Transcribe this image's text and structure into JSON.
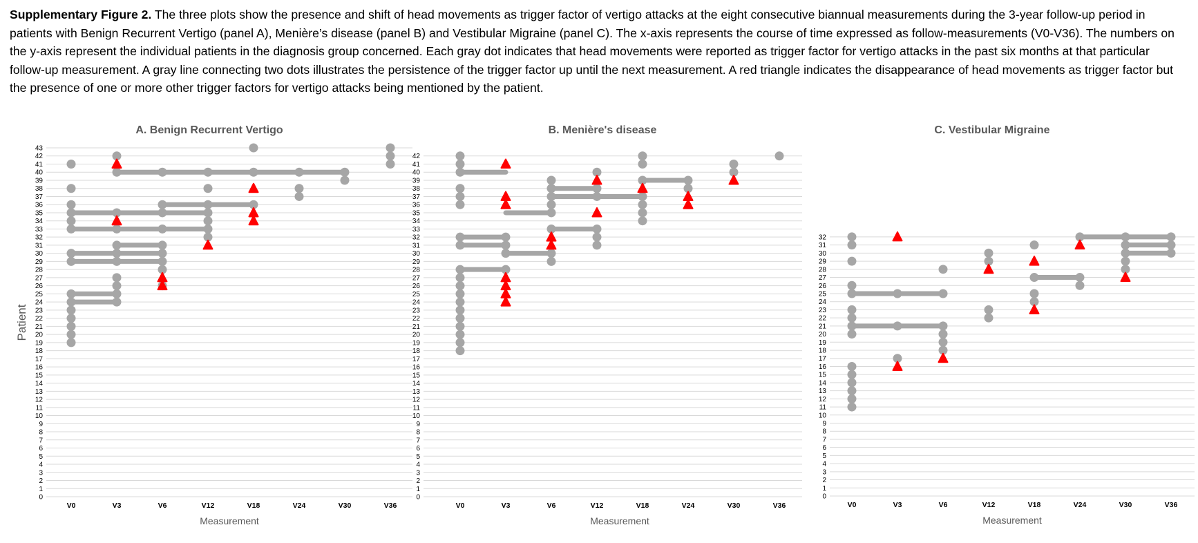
{
  "caption": {
    "label": "Supplementary Figure 2.",
    "text": " The three plots show the presence and shift of head movements as trigger factor of vertigo attacks at the eight consecutive biannual measurements during the 3-year follow-up period in patients with Benign Recurrent Vertigo (panel A), Menière’s disease (panel B) and Vestibular Migraine (panel C). The x-axis represents the course of time expressed as follow-measurements (V0-V36). The numbers on the y-axis represent the individual patients in the diagnosis group concerned. Each gray dot indicates that head movements were reported as trigger factor for vertigo attacks in the past six months at that particular follow-up measurement. A gray line connecting two dots illustrates the persistence of the trigger factor up until the next measurement. A red triangle indicates the disappearance of head movements as trigger factor but the presence of one or more other trigger factors for vertigo attacks being mentioned by the patient."
  },
  "colors": {
    "dot": "#a6a6a6",
    "line": "#a6a6a6",
    "triangle": "#ff0000",
    "grid": "#d9d9d9",
    "title": "#595959"
  },
  "chart_data": [
    {
      "type": "scatter",
      "title": "A. Benign Recurrent Vertigo",
      "xlabel": "Measurement",
      "ylabel": "Patient",
      "categories": [
        "V0",
        "V3",
        "V6",
        "V12",
        "V18",
        "V24",
        "V30",
        "V36"
      ],
      "ylim": [
        0,
        43
      ],
      "dots": [
        {
          "x": "V0",
          "y": [
            19,
            20,
            21,
            22,
            23,
            24,
            25,
            29,
            30,
            33,
            34,
            35,
            36,
            38,
            41
          ]
        },
        {
          "x": "V3",
          "y": [
            24,
            25,
            26,
            27,
            29,
            30,
            31,
            33,
            35,
            40,
            42
          ]
        },
        {
          "x": "V6",
          "y": [
            26,
            28,
            29,
            30,
            31,
            33,
            35,
            36,
            40
          ]
        },
        {
          "x": "V12",
          "y": [
            32,
            33,
            34,
            35,
            36,
            38,
            40
          ]
        },
        {
          "x": "V18",
          "y": [
            36,
            40,
            43
          ]
        },
        {
          "x": "V24",
          "y": [
            37,
            38,
            40
          ]
        },
        {
          "x": "V30",
          "y": [
            39,
            40
          ]
        },
        {
          "x": "V36",
          "y": [
            41,
            42,
            43
          ]
        }
      ],
      "lines": [
        {
          "y": 24,
          "from": "V0",
          "to": "V3"
        },
        {
          "y": 25,
          "from": "V0",
          "to": "V3"
        },
        {
          "y": 29,
          "from": "V0",
          "to": "V6"
        },
        {
          "y": 30,
          "from": "V0",
          "to": "V6"
        },
        {
          "y": 31,
          "from": "V3",
          "to": "V6"
        },
        {
          "y": 33,
          "from": "V0",
          "to": "V12"
        },
        {
          "y": 35,
          "from": "V0",
          "to": "V12"
        },
        {
          "y": 36,
          "from": "V6",
          "to": "V18"
        },
        {
          "y": 40,
          "from": "V3",
          "to": "V30"
        }
      ],
      "triangles": [
        {
          "x": "V3",
          "y": [
            34,
            41
          ]
        },
        {
          "x": "V6",
          "y": [
            26,
            27
          ]
        },
        {
          "x": "V12",
          "y": [
            31
          ]
        },
        {
          "x": "V18",
          "y": [
            34,
            35,
            38
          ]
        }
      ]
    },
    {
      "type": "scatter",
      "title": "B. Menière's disease",
      "xlabel": "Measurement",
      "ylabel": "",
      "categories": [
        "V0",
        "V3",
        "V6",
        "V12",
        "V18",
        "V24",
        "V30",
        "V36"
      ],
      "ylim": [
        0,
        42
      ],
      "dots": [
        {
          "x": "V0",
          "y": [
            18,
            19,
            20,
            21,
            22,
            23,
            24,
            25,
            26,
            27,
            28,
            31,
            32,
            36,
            37,
            38,
            40,
            41,
            42
          ]
        },
        {
          "x": "V3",
          "y": [
            28,
            30,
            31,
            32
          ]
        },
        {
          "x": "V6",
          "y": [
            29,
            30,
            33,
            35,
            36,
            37,
            38,
            39
          ]
        },
        {
          "x": "V12",
          "y": [
            31,
            32,
            33,
            37,
            38,
            40
          ]
        },
        {
          "x": "V18",
          "y": [
            34,
            35,
            36,
            37,
            39,
            41,
            42
          ]
        },
        {
          "x": "V24",
          "y": [
            38,
            39
          ]
        },
        {
          "x": "V30",
          "y": [
            40,
            41
          ]
        },
        {
          "x": "V36",
          "y": [
            42
          ]
        }
      ],
      "lines": [
        {
          "y": 28,
          "from": "V0",
          "to": "V3"
        },
        {
          "y": 30,
          "from": "V3",
          "to": "V6"
        },
        {
          "y": 31,
          "from": "V0",
          "to": "V3"
        },
        {
          "y": 32,
          "from": "V0",
          "to": "V3"
        },
        {
          "y": 33,
          "from": "V6",
          "to": "V12"
        },
        {
          "y": 35,
          "from": "V3",
          "to": "V6"
        },
        {
          "y": 37,
          "from": "V6",
          "to": "V18"
        },
        {
          "y": 38,
          "from": "V6",
          "to": "V12"
        },
        {
          "y": 39,
          "from": "V18",
          "to": "V24"
        },
        {
          "y": 40,
          "from": "V0",
          "to": "V3"
        }
      ],
      "triangles": [
        {
          "x": "V3",
          "y": [
            24,
            25,
            26,
            27,
            36,
            37,
            41
          ]
        },
        {
          "x": "V6",
          "y": [
            31,
            32
          ]
        },
        {
          "x": "V12",
          "y": [
            35,
            39
          ]
        },
        {
          "x": "V18",
          "y": [
            38
          ]
        },
        {
          "x": "V24",
          "y": [
            36,
            37
          ]
        },
        {
          "x": "V30",
          "y": [
            39
          ]
        }
      ]
    },
    {
      "type": "scatter",
      "title": "C. Vestibular Migraine",
      "xlabel": "Measurement",
      "ylabel": "",
      "categories": [
        "V0",
        "V3",
        "V6",
        "V12",
        "V18",
        "V24",
        "V30",
        "V36"
      ],
      "ylim": [
        0,
        32
      ],
      "dots": [
        {
          "x": "V0",
          "y": [
            11,
            12,
            13,
            14,
            15,
            16,
            20,
            21,
            22,
            23,
            25,
            26,
            29,
            31,
            32
          ]
        },
        {
          "x": "V3",
          "y": [
            17,
            21,
            25
          ]
        },
        {
          "x": "V6",
          "y": [
            18,
            19,
            20,
            21,
            25,
            28
          ]
        },
        {
          "x": "V12",
          "y": [
            22,
            23,
            29,
            30
          ]
        },
        {
          "x": "V18",
          "y": [
            24,
            25,
            27,
            31
          ]
        },
        {
          "x": "V24",
          "y": [
            26,
            27,
            32
          ]
        },
        {
          "x": "V30",
          "y": [
            28,
            29,
            30,
            31,
            32
          ]
        },
        {
          "x": "V36",
          "y": [
            30,
            31,
            32
          ]
        }
      ],
      "lines": [
        {
          "y": 21,
          "from": "V0",
          "to": "V6"
        },
        {
          "y": 25,
          "from": "V0",
          "to": "V6"
        },
        {
          "y": 27,
          "from": "V18",
          "to": "V24"
        },
        {
          "y": 30,
          "from": "V30",
          "to": "V36"
        },
        {
          "y": 31,
          "from": "V30",
          "to": "V36"
        },
        {
          "y": 32,
          "from": "V24",
          "to": "V36"
        }
      ],
      "triangles": [
        {
          "x": "V3",
          "y": [
            16,
            32
          ]
        },
        {
          "x": "V6",
          "y": [
            17
          ]
        },
        {
          "x": "V12",
          "y": [
            28
          ]
        },
        {
          "x": "V18",
          "y": [
            23,
            29
          ]
        },
        {
          "x": "V24",
          "y": [
            31
          ]
        },
        {
          "x": "V30",
          "y": [
            27
          ]
        }
      ]
    }
  ]
}
